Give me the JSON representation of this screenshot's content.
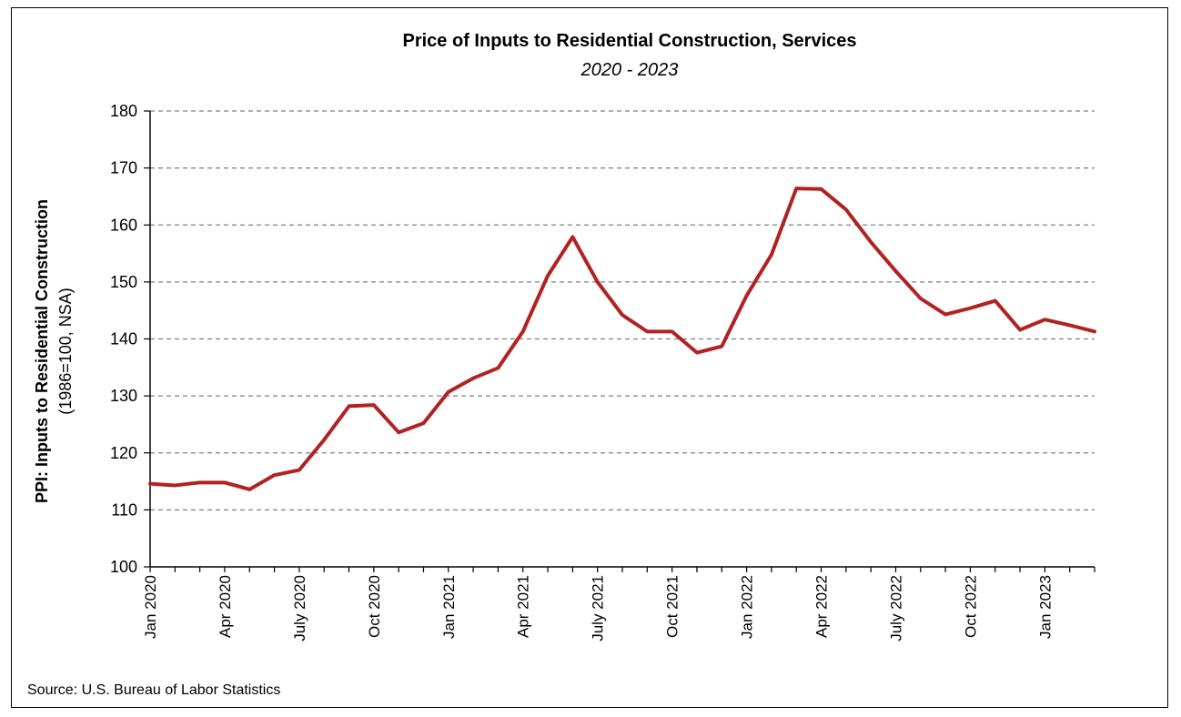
{
  "chart_data": {
    "type": "line",
    "title": "Price of Inputs to Residential Construction, Services",
    "subtitle": "2020 - 2023",
    "ylabel": "PPI: Inputs to Residential Construction",
    "ylabel_sub": "(1986=100, NSA)",
    "xlabel": "",
    "source": "Source: U.S. Bureau of Labor Statistics",
    "ylim": [
      100,
      180
    ],
    "yticks": [
      100,
      110,
      120,
      130,
      140,
      150,
      160,
      170,
      180
    ],
    "grid": true,
    "x_tick_labels": [
      {
        "index": 0,
        "label": "Jan 2020"
      },
      {
        "index": 3,
        "label": "Apr 2020"
      },
      {
        "index": 6,
        "label": "July 2020"
      },
      {
        "index": 9,
        "label": "Oct 2020"
      },
      {
        "index": 12,
        "label": "Jan 2021"
      },
      {
        "index": 15,
        "label": "Apr 2021"
      },
      {
        "index": 18,
        "label": "July 2021"
      },
      {
        "index": 21,
        "label": "Oct 2021"
      },
      {
        "index": 24,
        "label": "Jan 2022"
      },
      {
        "index": 27,
        "label": "Apr 2022"
      },
      {
        "index": 30,
        "label": "July 2022"
      },
      {
        "index": 33,
        "label": "Oct 2022"
      },
      {
        "index": 36,
        "label": "Jan 2023"
      }
    ],
    "series": [
      {
        "color": "#b22222",
        "values": [
          114.6,
          114.3,
          114.8,
          114.8,
          113.6,
          116.1,
          117.0,
          122.3,
          128.2,
          128.4,
          123.6,
          125.2,
          130.7,
          133.1,
          134.9,
          141.3,
          151.1,
          157.9,
          150.0,
          144.2,
          141.3,
          141.3,
          137.6,
          138.7,
          147.6,
          154.8,
          166.4,
          166.3,
          162.7,
          157.0,
          151.9,
          147.1,
          144.3,
          145.4,
          146.7,
          141.6,
          143.4,
          142.4,
          141.3
        ]
      }
    ]
  }
}
